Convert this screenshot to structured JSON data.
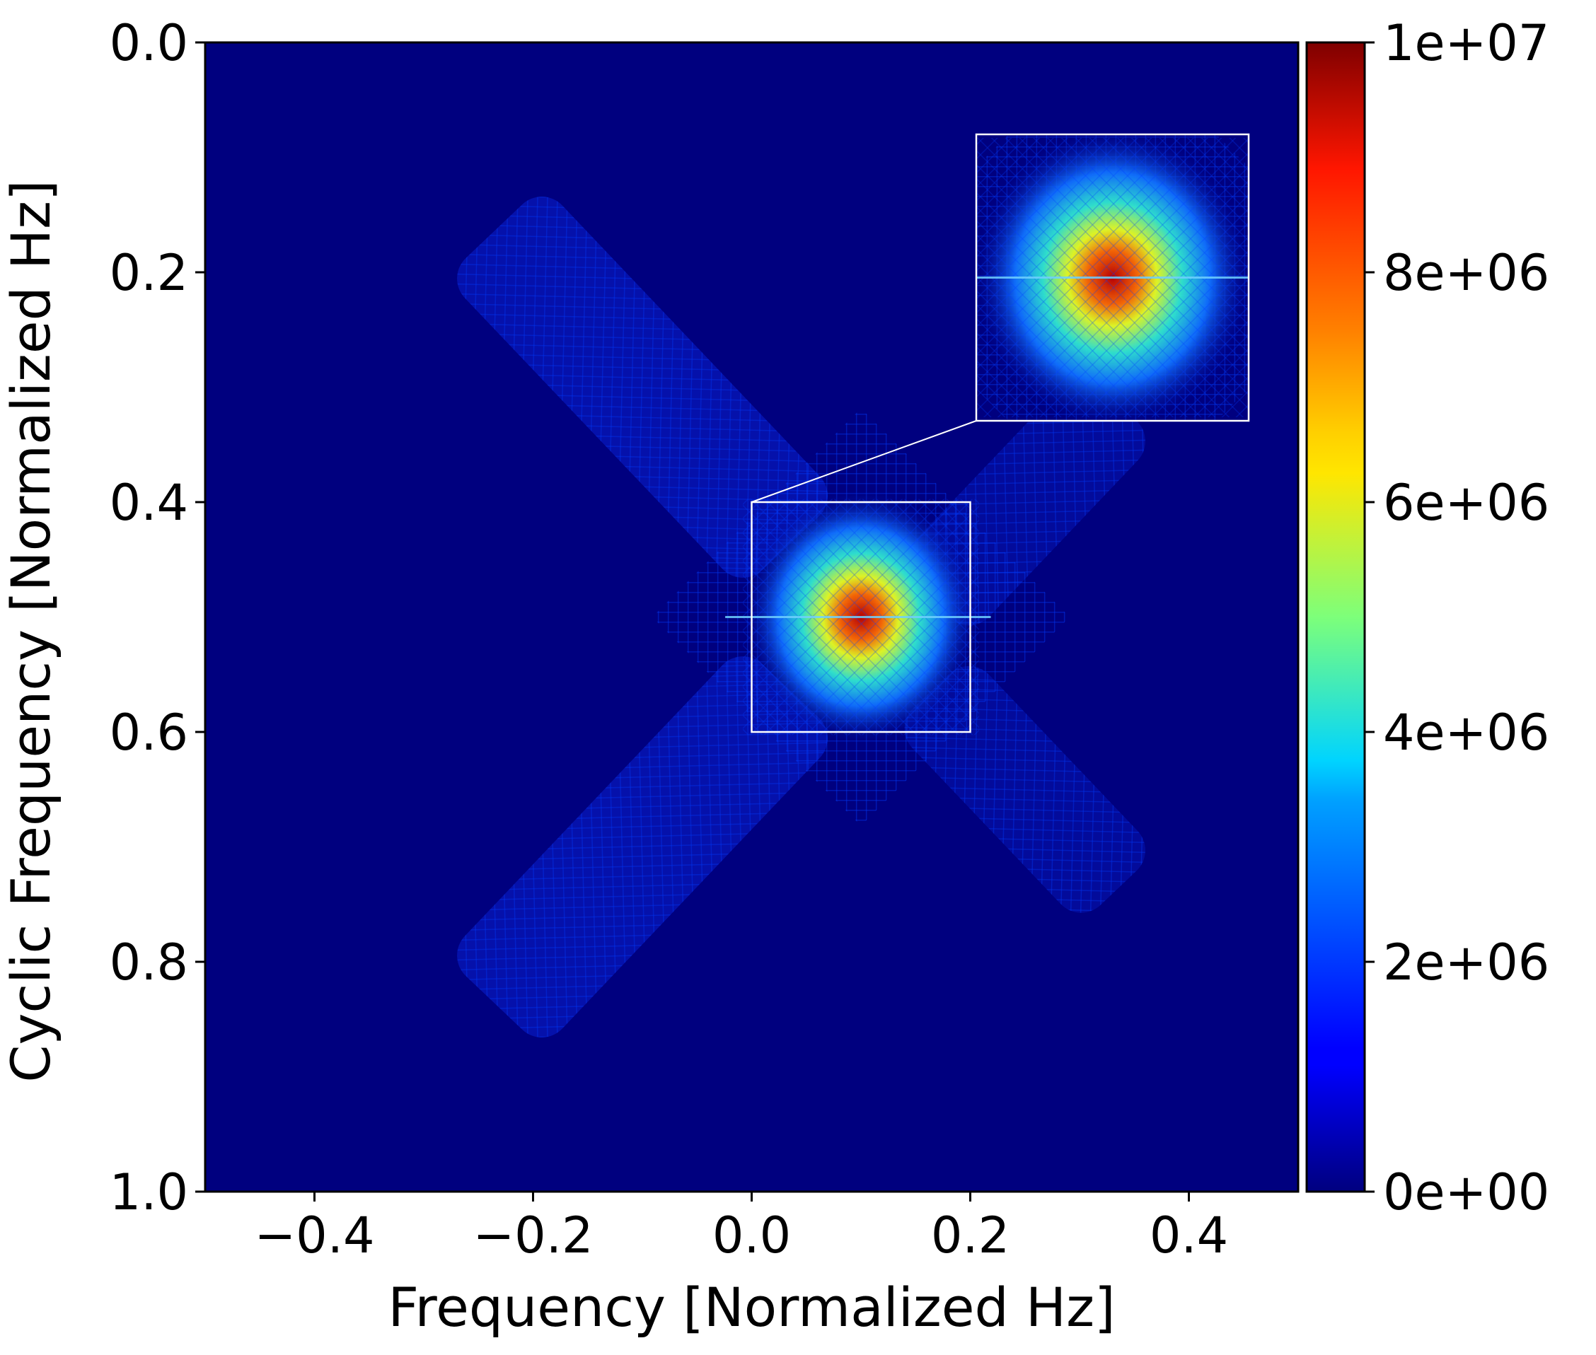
{
  "chart_data": {
    "type": "heatmap",
    "title": "",
    "xlabel": "Frequency [Normalized Hz]",
    "ylabel": "Cyclic Frequency [Normalized Hz]",
    "xlim": [
      -0.5,
      0.5
    ],
    "ylim": [
      0.0,
      1.0
    ],
    "y_inverted": true,
    "x_ticks": [
      -0.4,
      -0.2,
      0.0,
      0.2,
      0.4
    ],
    "x_tick_labels": [
      "−0.4",
      "−0.2",
      "0.0",
      "0.2",
      "0.4"
    ],
    "y_ticks": [
      0.0,
      0.2,
      0.4,
      0.6,
      0.8,
      1.0
    ],
    "y_tick_labels": [
      "0.0",
      "0.2",
      "0.4",
      "0.6",
      "0.8",
      "1.0"
    ],
    "grid": false,
    "colormap": "jet",
    "colorbar": {
      "range": [
        0,
        10000000
      ],
      "ticks": [
        0,
        2000000,
        4000000,
        6000000,
        8000000,
        10000000
      ],
      "tick_labels": [
        "0e+00",
        "2e+06",
        "4e+06",
        "6e+06",
        "8e+06",
        "1e+07"
      ],
      "position": "right"
    },
    "background_value": 200000,
    "features": [
      {
        "type": "peak",
        "f": 0.1,
        "alpha": 0.5,
        "value": 10000000,
        "spread": 0.045
      },
      {
        "type": "diagonal-band",
        "from": [
          -0.2,
          0.2
        ],
        "to": [
          0.0,
          0.4
        ],
        "value": 900000
      },
      {
        "type": "diagonal-band",
        "from": [
          0.0,
          0.6
        ],
        "to": [
          -0.2,
          0.8
        ],
        "value": 900000
      },
      {
        "type": "diagonal-band",
        "from": [
          0.2,
          0.45
        ],
        "to": [
          0.3,
          0.35
        ],
        "value": 500000
      },
      {
        "type": "diagonal-band",
        "from": [
          0.2,
          0.6
        ],
        "to": [
          0.3,
          0.7
        ],
        "value": 500000
      }
    ],
    "inset": {
      "source_region": {
        "x": [
          0.0,
          0.2
        ],
        "y": [
          0.4,
          0.6
        ]
      },
      "zoom_location": "top-right"
    }
  },
  "colors": {
    "background": "#ffffff",
    "axis": "#000000",
    "inset_frame": "#ffffff",
    "jet_low": "#00007f",
    "jet_high": "#7f0000"
  }
}
